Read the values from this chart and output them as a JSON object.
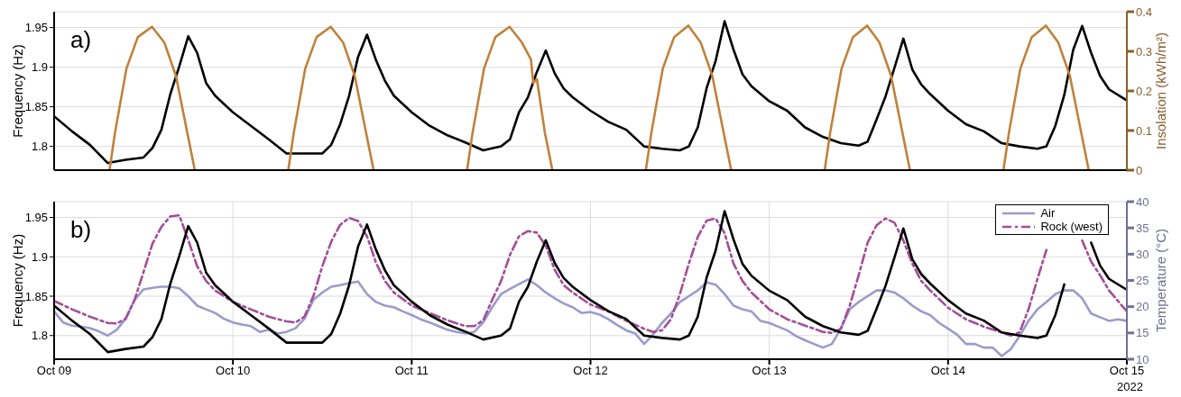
{
  "chart_data": [
    {
      "type": "line",
      "ylabel": "Frequency (Hz)",
      "y2label": "Insolation (kWh/m²)",
      "annotations": [
        "a)"
      ],
      "x": [
        "2022-10-09T00:00",
        "2022-10-09T02:24",
        "2022-10-09T04:48",
        "2022-10-09T07:12",
        "2022-10-09T09:36",
        "2022-10-09T12:00",
        "2022-10-09T13:12",
        "2022-10-09T14:24",
        "2022-10-09T15:36",
        "2022-10-09T16:48",
        "2022-10-09T18:00",
        "2022-10-09T19:12",
        "2022-10-09T20:24",
        "2022-10-09T21:36",
        "2022-10-10T00:00",
        "2022-10-10T02:24",
        "2022-10-10T04:48",
        "2022-10-10T07:12",
        "2022-10-10T09:36",
        "2022-10-10T12:00",
        "2022-10-10T13:12",
        "2022-10-10T14:24",
        "2022-10-10T15:36",
        "2022-10-10T16:48",
        "2022-10-10T18:00",
        "2022-10-10T19:12",
        "2022-10-10T20:24",
        "2022-10-10T21:36",
        "2022-10-11T00:00",
        "2022-10-11T02:24",
        "2022-10-11T04:48",
        "2022-10-11T07:12",
        "2022-10-11T09:36",
        "2022-10-11T12:00",
        "2022-10-11T13:12",
        "2022-10-11T14:24",
        "2022-10-11T15:36",
        "2022-10-11T16:48",
        "2022-10-11T18:00",
        "2022-10-11T19:12",
        "2022-10-11T20:24",
        "2022-10-11T21:36",
        "2022-10-12T00:00",
        "2022-10-12T02:24",
        "2022-10-12T04:48",
        "2022-10-12T07:12",
        "2022-10-12T09:36",
        "2022-10-12T12:00",
        "2022-10-12T13:12",
        "2022-10-12T14:24",
        "2022-10-12T15:36",
        "2022-10-12T16:48",
        "2022-10-12T18:00",
        "2022-10-12T19:12",
        "2022-10-12T20:24",
        "2022-10-12T21:36",
        "2022-10-13T00:00",
        "2022-10-13T02:24",
        "2022-10-13T04:48",
        "2022-10-13T07:12",
        "2022-10-13T09:36",
        "2022-10-13T12:00",
        "2022-10-13T13:12",
        "2022-10-13T14:24",
        "2022-10-13T15:36",
        "2022-10-13T16:48",
        "2022-10-13T18:00",
        "2022-10-13T19:12",
        "2022-10-13T20:24",
        "2022-10-13T21:36",
        "2022-10-14T00:00",
        "2022-10-14T02:24",
        "2022-10-14T04:48",
        "2022-10-14T07:12",
        "2022-10-14T09:36",
        "2022-10-14T12:00",
        "2022-10-14T13:12",
        "2022-10-14T14:24",
        "2022-10-14T15:36",
        "2022-10-14T16:48",
        "2022-10-14T18:00",
        "2022-10-14T19:12",
        "2022-10-14T20:24",
        "2022-10-14T21:36",
        "2022-10-15T00:00"
      ],
      "series": [
        {
          "color": "#000000",
          "values": [
            1.838,
            1.819,
            1.802,
            1.779,
            1.783,
            1.786,
            1.798,
            1.821,
            1.866,
            1.901,
            1.939,
            1.918,
            1.88,
            1.864,
            1.843,
            1.826,
            1.809,
            1.791,
            1.791,
            1.791,
            1.802,
            1.828,
            1.864,
            1.913,
            1.941,
            1.909,
            1.883,
            1.864,
            1.843,
            1.826,
            1.814,
            1.805,
            1.795,
            1.8,
            1.809,
            1.843,
            1.862,
            1.894,
            1.921,
            1.892,
            1.873,
            1.862,
            1.845,
            1.831,
            1.821,
            1.8,
            1.797,
            1.795,
            1.8,
            1.824,
            1.874,
            1.908,
            1.958,
            1.922,
            1.891,
            1.876,
            1.857,
            1.845,
            1.824,
            1.812,
            1.804,
            1.801,
            1.806,
            1.834,
            1.863,
            1.899,
            1.936,
            1.897,
            1.878,
            1.866,
            1.845,
            1.828,
            1.819,
            1.804,
            1.8,
            1.797,
            1.8,
            1.826,
            1.865,
            1.922,
            1.952,
            1.918,
            1.889,
            1.872,
            1.858
          ]
        },
        {
          "color": "#c0813a",
          "axis": "y2",
          "x": [
            "2022-10-09T07:26",
            "2022-10-09T08:10",
            "2022-10-09T09:42",
            "2022-10-09T11:14",
            "2022-10-09T13:08",
            "2022-10-09T14:48",
            "2022-10-09T16:21",
            "2022-10-09T17:53",
            "2022-10-09T18:53",
            "2022-10-09T21:00",
            "2022-10-10T07:26",
            "2022-10-10T08:10",
            "2022-10-10T09:42",
            "2022-10-10T11:14",
            "2022-10-10T13:08",
            "2022-10-10T14:48",
            "2022-10-10T16:21",
            "2022-10-10T17:53",
            "2022-10-10T18:53",
            "2022-10-10T21:00",
            "2022-10-11T07:26",
            "2022-10-11T08:10",
            "2022-10-11T09:42",
            "2022-10-11T11:14",
            "2022-10-11T13:08",
            "2022-10-11T14:48",
            "2022-10-11T16:00",
            "2022-10-11T16:19",
            "2022-10-11T16:48",
            "2022-10-11T17:53",
            "2022-10-11T18:53",
            "2022-10-11T21:00",
            "2022-10-12T07:26",
            "2022-10-12T08:10",
            "2022-10-12T09:42",
            "2022-10-12T11:14",
            "2022-10-12T13:08",
            "2022-10-12T14:48",
            "2022-10-12T16:21",
            "2022-10-12T17:53",
            "2022-10-12T18:53",
            "2022-10-12T21:00",
            "2022-10-13T07:26",
            "2022-10-13T08:10",
            "2022-10-13T09:42",
            "2022-10-13T11:14",
            "2022-10-13T13:08",
            "2022-10-13T14:48",
            "2022-10-13T16:21",
            "2022-10-13T17:53",
            "2022-10-13T18:53",
            "2022-10-13T21:00",
            "2022-10-14T07:26",
            "2022-10-14T08:10",
            "2022-10-14T09:42",
            "2022-10-14T11:14",
            "2022-10-14T13:08",
            "2022-10-14T14:48",
            "2022-10-14T16:21",
            "2022-10-14T17:53",
            "2022-10-14T18:53"
          ],
          "values": [
            0,
            0.094,
            0.256,
            0.336,
            0.362,
            0.322,
            0.238,
            0.094,
            0,
            null,
            0,
            0.094,
            0.256,
            0.336,
            0.362,
            0.322,
            0.238,
            0.094,
            0,
            null,
            0,
            0.094,
            0.256,
            0.336,
            0.362,
            0.322,
            0.28,
            0.22,
            0.23,
            0.094,
            0,
            null,
            0,
            0.094,
            0.256,
            0.336,
            0.365,
            0.322,
            0.238,
            0.094,
            0,
            null,
            0,
            0.094,
            0.256,
            0.336,
            0.365,
            0.322,
            0.238,
            0.094,
            0,
            null,
            0,
            0.094,
            0.256,
            0.336,
            0.365,
            0.322,
            0.238,
            0.094,
            0
          ]
        }
      ],
      "xlim": [
        "2022-10-09",
        "2022-10-15"
      ],
      "xticks": [
        {
          "value": "2022-10-09",
          "label": null
        },
        {
          "value": "2022-10-10",
          "label": null
        },
        {
          "value": "2022-10-11",
          "label": null
        },
        {
          "value": "2022-10-12",
          "label": null
        },
        {
          "value": "2022-10-13",
          "label": null
        },
        {
          "value": "2022-10-14",
          "label": null
        },
        {
          "value": "2022-10-15",
          "label": null
        }
      ],
      "ylim": [
        1.77,
        1.97
      ],
      "yticks": [
        1.8,
        1.85,
        1.9,
        1.95
      ],
      "y2lim": [
        0,
        0.4
      ],
      "y2ticks": [
        0,
        0.1,
        0.2,
        0.3,
        0.4
      ],
      "grid": true,
      "tick_labels": "y"
    },
    {
      "type": "line",
      "ylabel": "Frequency (Hz)",
      "y2label": "Temperature (°C)",
      "annotations": [
        "b)",
        "2022"
      ],
      "legend": "top right",
      "x": [
        "2022-10-09T00:00",
        "2022-10-09T02:24",
        "2022-10-09T04:48",
        "2022-10-09T07:12",
        "2022-10-09T09:36",
        "2022-10-09T12:00",
        "2022-10-09T13:12",
        "2022-10-09T14:24",
        "2022-10-09T15:36",
        "2022-10-09T16:48",
        "2022-10-09T18:00",
        "2022-10-09T19:12",
        "2022-10-09T20:24",
        "2022-10-09T21:36",
        "2022-10-10T00:00",
        "2022-10-10T02:24",
        "2022-10-10T04:48",
        "2022-10-10T07:12",
        "2022-10-10T09:36",
        "2022-10-10T12:00",
        "2022-10-10T13:12",
        "2022-10-10T14:24",
        "2022-10-10T15:36",
        "2022-10-10T16:48",
        "2022-10-10T18:00",
        "2022-10-10T19:12",
        "2022-10-10T20:24",
        "2022-10-10T21:36",
        "2022-10-11T00:00",
        "2022-10-11T02:24",
        "2022-10-11T04:48",
        "2022-10-11T07:12",
        "2022-10-11T09:36",
        "2022-10-11T12:00",
        "2022-10-11T13:12",
        "2022-10-11T14:24",
        "2022-10-11T15:36",
        "2022-10-11T16:48",
        "2022-10-11T18:00",
        "2022-10-11T19:12",
        "2022-10-11T20:24",
        "2022-10-11T21:36",
        "2022-10-12T00:00",
        "2022-10-12T02:24",
        "2022-10-12T04:48",
        "2022-10-12T07:12",
        "2022-10-12T09:36",
        "2022-10-12T12:00",
        "2022-10-12T13:12",
        "2022-10-12T14:24",
        "2022-10-12T15:36",
        "2022-10-12T16:48",
        "2022-10-12T18:00",
        "2022-10-12T19:12",
        "2022-10-12T20:24",
        "2022-10-12T21:36",
        "2022-10-13T00:00",
        "2022-10-13T02:24",
        "2022-10-13T04:48",
        "2022-10-13T07:12",
        "2022-10-13T09:36",
        "2022-10-13T12:00",
        "2022-10-13T13:12",
        "2022-10-13T14:24",
        "2022-10-13T15:36",
        "2022-10-13T16:48",
        "2022-10-13T18:00",
        "2022-10-13T19:12",
        "2022-10-13T20:24",
        "2022-10-13T21:36",
        "2022-10-14T00:00",
        "2022-10-14T02:24",
        "2022-10-14T04:48",
        "2022-10-14T07:12",
        "2022-10-14T09:36",
        "2022-10-14T12:00",
        "2022-10-14T13:12",
        "2022-10-14T14:24",
        "2022-10-14T15:36",
        "2022-10-14T16:48",
        "2022-10-14T18:00",
        "2022-10-14T19:12",
        "2022-10-14T20:24",
        "2022-10-14T21:36",
        "2022-10-15T00:00"
      ],
      "series": [
        {
          "name": "Air",
          "color": "#9b9bcc",
          "axis": "y2",
          "x": [
            "2022-10-09T00:00",
            "2022-10-09T01:12",
            "2022-10-09T02:24",
            "2022-10-09T03:36",
            "2022-10-09T04:48",
            "2022-10-09T06:00",
            "2022-10-09T07:12",
            "2022-10-09T08:24",
            "2022-10-09T09:36",
            "2022-10-09T10:48",
            "2022-10-09T12:00",
            "2022-10-09T13:12",
            "2022-10-09T14:24",
            "2022-10-09T15:36",
            "2022-10-09T16:48",
            "2022-10-09T18:00",
            "2022-10-09T19:12",
            "2022-10-09T20:24",
            "2022-10-09T21:36",
            "2022-10-09T22:48",
            "2022-10-10T00:00",
            "2022-10-10T01:12",
            "2022-10-10T02:24",
            "2022-10-10T03:36",
            "2022-10-10T04:48",
            "2022-10-10T06:00",
            "2022-10-10T07:12",
            "2022-10-10T08:24",
            "2022-10-10T09:36",
            "2022-10-10T10:48",
            "2022-10-10T12:00",
            "2022-10-10T13:12",
            "2022-10-10T14:24",
            "2022-10-10T15:36",
            "2022-10-10T16:48",
            "2022-10-10T18:00",
            "2022-10-10T19:12",
            "2022-10-10T20:24",
            "2022-10-10T21:36",
            "2022-10-10T22:48",
            "2022-10-11T00:00",
            "2022-10-11T01:12",
            "2022-10-11T02:24",
            "2022-10-11T03:36",
            "2022-10-11T04:48",
            "2022-10-11T06:00",
            "2022-10-11T07:12",
            "2022-10-11T08:24",
            "2022-10-11T09:36",
            "2022-10-11T10:48",
            "2022-10-11T12:00",
            "2022-10-11T13:12",
            "2022-10-11T14:24",
            "2022-10-11T15:36",
            "2022-10-11T16:48",
            "2022-10-11T18:00",
            "2022-10-11T19:12",
            "2022-10-11T20:24",
            "2022-10-11T21:36",
            "2022-10-11T22:48",
            "2022-10-12T00:00",
            "2022-10-12T01:12",
            "2022-10-12T02:24",
            "2022-10-12T03:36",
            "2022-10-12T04:48",
            "2022-10-12T06:00",
            "2022-10-12T07:12",
            "2022-10-12T08:24",
            "2022-10-12T09:36",
            "2022-10-12T10:48",
            "2022-10-12T12:00",
            "2022-10-12T13:12",
            "2022-10-12T14:24",
            "2022-10-12T15:36",
            "2022-10-12T16:48",
            "2022-10-12T18:00",
            "2022-10-12T19:12",
            "2022-10-12T20:24",
            "2022-10-12T21:36",
            "2022-10-12T22:48",
            "2022-10-13T00:00",
            "2022-10-13T01:12",
            "2022-10-13T02:24",
            "2022-10-13T03:36",
            "2022-10-13T04:48",
            "2022-10-13T06:00",
            "2022-10-13T07:12",
            "2022-10-13T08:24",
            "2022-10-13T09:36",
            "2022-10-13T10:48",
            "2022-10-13T12:00",
            "2022-10-13T13:12",
            "2022-10-13T14:24",
            "2022-10-13T15:36",
            "2022-10-13T16:48",
            "2022-10-13T18:00",
            "2022-10-13T19:12",
            "2022-10-13T20:24",
            "2022-10-13T21:36",
            "2022-10-13T22:48",
            "2022-10-14T00:00",
            "2022-10-14T01:12",
            "2022-10-14T02:24",
            "2022-10-14T03:36",
            "2022-10-14T04:48",
            "2022-10-14T06:00",
            "2022-10-14T07:12",
            "2022-10-14T08:24",
            "2022-10-14T09:36",
            "2022-10-14T10:48",
            "2022-10-14T12:00",
            "2022-10-14T13:12",
            "2022-10-14T14:24",
            "2022-10-14T15:36",
            "2022-10-14T16:48",
            "2022-10-14T18:00",
            "2022-10-14T19:12",
            "2022-10-14T20:24",
            "2022-10-14T21:36",
            "2022-10-14T22:48",
            "2022-10-15T00:00"
          ],
          "values": [
            19.1,
            17.0,
            16.4,
            16.2,
            15.9,
            15.3,
            14.5,
            15.6,
            17.7,
            21.3,
            23.3,
            23.6,
            23.8,
            23.8,
            23.5,
            22.0,
            20.2,
            19.5,
            18.8,
            17.7,
            17.0,
            16.6,
            16.3,
            15.2,
            15.6,
            14.9,
            15.2,
            15.9,
            17.7,
            21.3,
            22.7,
            23.8,
            24.1,
            24.5,
            24.8,
            22.4,
            20.9,
            20.2,
            19.9,
            19.1,
            18.4,
            17.6,
            17.0,
            16.3,
            15.6,
            15.2,
            14.9,
            15.2,
            17.0,
            19.9,
            22.4,
            23.4,
            24.3,
            25.2,
            24.1,
            22.7,
            21.6,
            20.6,
            19.9,
            18.8,
            19.0,
            18.5,
            17.6,
            16.5,
            15.5,
            14.9,
            12.9,
            14.7,
            16.9,
            18.7,
            20.9,
            22.0,
            23.1,
            24.6,
            24.2,
            22.4,
            20.2,
            19.5,
            19.1,
            17.3,
            16.9,
            16.2,
            15.5,
            14.4,
            13.6,
            12.9,
            12.2,
            12.9,
            15.8,
            19.5,
            20.9,
            22.0,
            23.1,
            23.1,
            22.7,
            21.6,
            20.2,
            19.1,
            18.4,
            16.9,
            15.8,
            14.7,
            12.9,
            12.9,
            12.2,
            12.2,
            10.6,
            11.9,
            14.4,
            17.3,
            19.5,
            20.9,
            22.4,
            23.1,
            23.1,
            21.6,
            18.7,
            18.0,
            17.3,
            17.6,
            17.3
          ]
        },
        {
          "name": "Rock (west)",
          "color": "#a34e98",
          "axis": "y2",
          "line_style": "dashed",
          "x": [
            "2022-10-09T00:00",
            "2022-10-09T02:24",
            "2022-10-09T04:48",
            "2022-10-09T07:12",
            "2022-10-09T08:24",
            "2022-10-09T09:36",
            "2022-10-09T10:48",
            "2022-10-09T12:00",
            "2022-10-09T13:12",
            "2022-10-09T14:24",
            "2022-10-09T15:36",
            "2022-10-09T16:48",
            "2022-10-09T18:00",
            "2022-10-09T19:12",
            "2022-10-09T20:24",
            "2022-10-09T21:36",
            "2022-10-10T00:00",
            "2022-10-10T02:24",
            "2022-10-10T04:48",
            "2022-10-10T07:12",
            "2022-10-10T08:24",
            "2022-10-10T09:36",
            "2022-10-10T10:48",
            "2022-10-10T12:00",
            "2022-10-10T13:12",
            "2022-10-10T14:24",
            "2022-10-10T15:36",
            "2022-10-10T16:48",
            "2022-10-10T18:00",
            "2022-10-10T19:12",
            "2022-10-10T20:24",
            "2022-10-10T21:36",
            "2022-10-11T00:00",
            "2022-10-11T02:24",
            "2022-10-11T04:48",
            "2022-10-11T07:12",
            "2022-10-11T08:24",
            "2022-10-11T09:36",
            "2022-10-11T10:48",
            "2022-10-11T12:00",
            "2022-10-11T13:12",
            "2022-10-11T14:24",
            "2022-10-11T15:36",
            "2022-10-11T16:48",
            "2022-10-11T18:00",
            "2022-10-11T19:12",
            "2022-10-11T20:24",
            "2022-10-11T21:36",
            "2022-10-12T00:00",
            "2022-10-12T02:24",
            "2022-10-12T04:48",
            "2022-10-12T07:12",
            "2022-10-12T08:24",
            "2022-10-12T09:36",
            "2022-10-12T10:48",
            "2022-10-12T12:00",
            "2022-10-12T13:12",
            "2022-10-12T14:24",
            "2022-10-12T15:36",
            "2022-10-12T16:48",
            "2022-10-12T18:00",
            "2022-10-12T19:12",
            "2022-10-12T20:24",
            "2022-10-12T21:36",
            "2022-10-13T00:00",
            "2022-10-13T02:24",
            "2022-10-13T04:48",
            "2022-10-13T07:12",
            "2022-10-13T08:24",
            "2022-10-13T09:36",
            "2022-10-13T10:48",
            "2022-10-13T12:00",
            "2022-10-13T13:12",
            "2022-10-13T14:24",
            "2022-10-13T15:36",
            "2022-10-13T16:48",
            "2022-10-13T18:00",
            "2022-10-13T19:12",
            "2022-10-13T20:24",
            "2022-10-13T21:36",
            "2022-10-14T00:00",
            "2022-10-14T02:24",
            "2022-10-14T04:48",
            "2022-10-14T07:12",
            "2022-10-14T08:24",
            "2022-10-14T09:36",
            "2022-10-14T10:48",
            "2022-10-14T12:00",
            "2022-10-14T13:12",
            "2022-10-14T14:24",
            "2022-10-14T15:36",
            "2022-10-14T16:48",
            "2022-10-14T18:00",
            "2022-10-14T19:12",
            "2022-10-14T20:24",
            "2022-10-14T21:36",
            "2022-10-15T00:00"
          ],
          "values": [
            21.1,
            19.5,
            18.1,
            16.9,
            16.8,
            17.7,
            21.3,
            26.6,
            32.0,
            35.2,
            37.2,
            37.4,
            32.7,
            27.7,
            24.9,
            23.1,
            20.9,
            19.5,
            18.1,
            17.2,
            17.0,
            18.1,
            22.0,
            27.7,
            32.4,
            35.6,
            36.9,
            36.3,
            33.4,
            28.4,
            24.9,
            22.7,
            20.2,
            18.8,
            17.4,
            16.3,
            16.3,
            17.4,
            21.3,
            24.9,
            29.9,
            33.4,
            34.4,
            34.1,
            31.6,
            27.0,
            24.1,
            22.7,
            20.4,
            19.1,
            17.3,
            15.8,
            15.2,
            15.5,
            17.6,
            22.4,
            28.2,
            33.3,
            36.4,
            36.8,
            34.0,
            28.2,
            24.9,
            22.7,
            19.5,
            17.6,
            16.4,
            15.2,
            15.0,
            15.8,
            20.2,
            26.0,
            32.2,
            35.5,
            36.8,
            36.0,
            32.6,
            28.2,
            24.9,
            23.1,
            19.8,
            17.6,
            16.2,
            15.1,
            14.5,
            15.1,
            19.5,
            25.3,
            30.8,
            null,
            null,
            null,
            32.6,
            28.6,
            26.0,
            23.1,
            19.1
          ]
        },
        {
          "color": "#000000",
          "values": [
            1.838,
            1.819,
            1.802,
            1.779,
            1.783,
            1.786,
            1.798,
            1.821,
            1.866,
            1.901,
            1.939,
            1.918,
            1.88,
            1.864,
            1.843,
            1.826,
            1.809,
            1.791,
            1.791,
            1.791,
            1.802,
            1.828,
            1.864,
            1.913,
            1.941,
            1.909,
            1.883,
            1.864,
            1.843,
            1.826,
            1.814,
            1.805,
            1.795,
            1.8,
            1.809,
            1.843,
            1.862,
            1.894,
            1.921,
            1.892,
            1.873,
            1.862,
            1.845,
            1.831,
            1.821,
            1.8,
            1.797,
            1.795,
            1.8,
            1.824,
            1.874,
            1.908,
            1.958,
            1.922,
            1.891,
            1.876,
            1.857,
            1.845,
            1.824,
            1.812,
            1.804,
            1.801,
            1.806,
            1.834,
            1.863,
            1.899,
            1.936,
            1.897,
            1.878,
            1.866,
            1.845,
            1.828,
            1.819,
            1.804,
            1.8,
            1.797,
            1.8,
            1.826,
            1.865,
            null,
            null,
            1.918,
            1.889,
            1.872,
            1.858
          ]
        }
      ],
      "xlim": [
        "2022-10-09",
        "2022-10-15"
      ],
      "xticks": [
        {
          "value": "2022-10-09",
          "label": "Oct 09"
        },
        {
          "value": "2022-10-10",
          "label": "Oct 10"
        },
        {
          "value": "2022-10-11",
          "label": "Oct 11"
        },
        {
          "value": "2022-10-12",
          "label": "Oct 12"
        },
        {
          "value": "2022-10-13",
          "label": "Oct 13"
        },
        {
          "value": "2022-10-14",
          "label": "Oct 14"
        },
        {
          "value": "2022-10-15",
          "label": "Oct 15"
        }
      ],
      "ylim": [
        1.77,
        1.97
      ],
      "yticks": [
        1.8,
        1.85,
        1.9,
        1.95
      ],
      "y2lim": [
        10,
        40
      ],
      "y2ticks": [
        10,
        15,
        20,
        25,
        30,
        35,
        40
      ],
      "grid": true
    }
  ]
}
